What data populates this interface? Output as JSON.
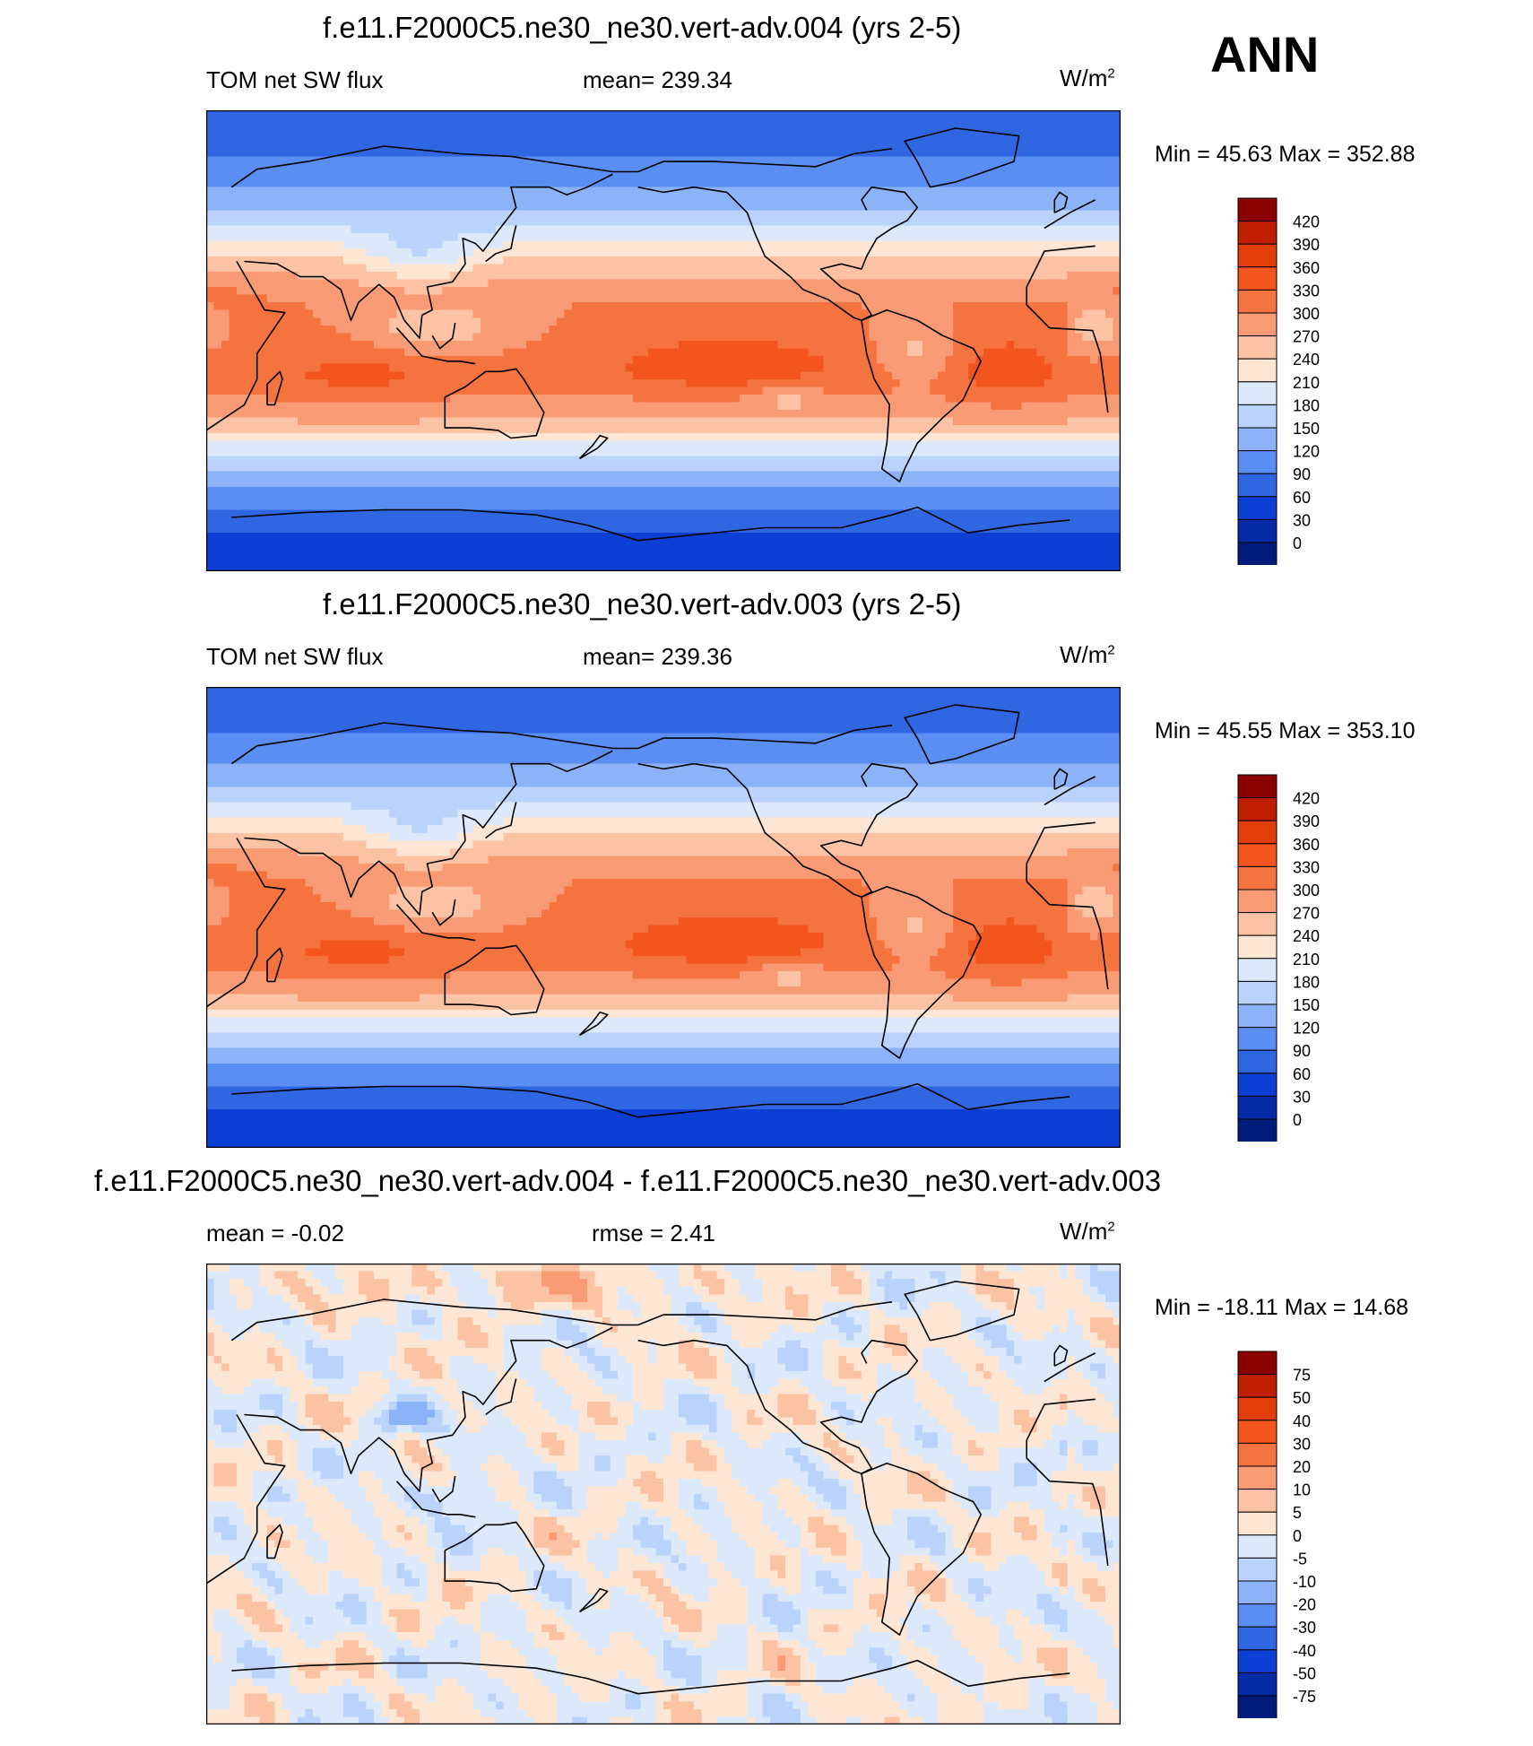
{
  "season": "ANN",
  "units": "W/m",
  "units_exp": "2",
  "panels": [
    {
      "title": "f.e11.F2000C5.ne30_ne30.vert-adv.004 (yrs 2-5)",
      "left_label": "TOM net SW flux",
      "stat_label": "mean= 239.34",
      "minmax": "Min =  45.63 Max = 352.88"
    },
    {
      "title": "f.e11.F2000C5.ne30_ne30.vert-adv.003 (yrs 2-5)",
      "left_label": "TOM net SW flux",
      "stat_label": "mean= 239.36",
      "minmax": "Min =  45.55 Max = 353.10"
    },
    {
      "title": "f.e11.F2000C5.ne30_ne30.vert-adv.004 - f.e11.F2000C5.ne30_ne30.vert-adv.003",
      "left_label": "mean =  -0.02",
      "stat_label": "rmse =   2.41",
      "minmax": "Min = -18.11 Max =  14.68"
    }
  ],
  "chart_data": [
    {
      "type": "heatmap",
      "title": "f.e11.F2000C5.ne30_ne30.vert-adv.004 (yrs 2-5)",
      "variable": "TOM net SW flux",
      "units": "W/m2",
      "mean": 239.34,
      "min": 45.63,
      "max": 352.88,
      "colorbar_levels": [
        "420",
        "390",
        "360",
        "330",
        "300",
        "270",
        "240",
        "210",
        "180",
        "150",
        "120",
        "90",
        "60",
        "30",
        "0"
      ],
      "colorbar_colors": [
        "#8b0000",
        "#bf1f00",
        "#e33d0c",
        "#f2551d",
        "#f5733f",
        "#f89a73",
        "#fbc3a3",
        "#fde6d4",
        "#dce9fb",
        "#b9d3fb",
        "#8cb3f7",
        "#5b8ef2",
        "#2f67e3",
        "#0c3fd4",
        "#042aa6",
        "#001b7a"
      ],
      "zonal_profile": {
        "lat": [
          -90,
          -75,
          -60,
          -45,
          -30,
          -15,
          0,
          15,
          30,
          45,
          60,
          75,
          90
        ],
        "value": [
          50,
          60,
          110,
          170,
          280,
          315,
          305,
          300,
          255,
          175,
          120,
          80,
          60
        ]
      }
    },
    {
      "type": "heatmap",
      "title": "f.e11.F2000C5.ne30_ne30.vert-adv.003 (yrs 2-5)",
      "variable": "TOM net SW flux",
      "units": "W/m2",
      "mean": 239.36,
      "min": 45.55,
      "max": 353.1,
      "colorbar_levels": [
        "420",
        "390",
        "360",
        "330",
        "300",
        "270",
        "240",
        "210",
        "180",
        "150",
        "120",
        "90",
        "60",
        "30",
        "0"
      ],
      "colorbar_colors": [
        "#8b0000",
        "#bf1f00",
        "#e33d0c",
        "#f2551d",
        "#f5733f",
        "#f89a73",
        "#fbc3a3",
        "#fde6d4",
        "#dce9fb",
        "#b9d3fb",
        "#8cb3f7",
        "#5b8ef2",
        "#2f67e3",
        "#0c3fd4",
        "#042aa6",
        "#001b7a"
      ],
      "zonal_profile": {
        "lat": [
          -90,
          -75,
          -60,
          -45,
          -30,
          -15,
          0,
          15,
          30,
          45,
          60,
          75,
          90
        ],
        "value": [
          50,
          60,
          110,
          170,
          280,
          315,
          305,
          300,
          255,
          175,
          120,
          80,
          60
        ]
      }
    },
    {
      "type": "heatmap",
      "title": "f.e11.F2000C5.ne30_ne30.vert-adv.004 - f.e11.F2000C5.ne30_ne30.vert-adv.003",
      "units": "W/m2",
      "mean": -0.02,
      "rmse": 2.41,
      "min": -18.11,
      "max": 14.68,
      "colorbar_levels": [
        "75",
        "50",
        "40",
        "30",
        "20",
        "10",
        "5",
        "0",
        "-5",
        "-10",
        "-20",
        "-30",
        "-40",
        "-50",
        "-75"
      ],
      "colorbar_colors": [
        "#8b0000",
        "#bf1f00",
        "#e33d0c",
        "#f2551d",
        "#f5733f",
        "#f89a73",
        "#fbc3a3",
        "#fde6d4",
        "#dce9fb",
        "#b9d3fb",
        "#8cb3f7",
        "#5b8ef2",
        "#2f67e3",
        "#0c3fd4",
        "#042aa6",
        "#001b7a"
      ]
    }
  ]
}
